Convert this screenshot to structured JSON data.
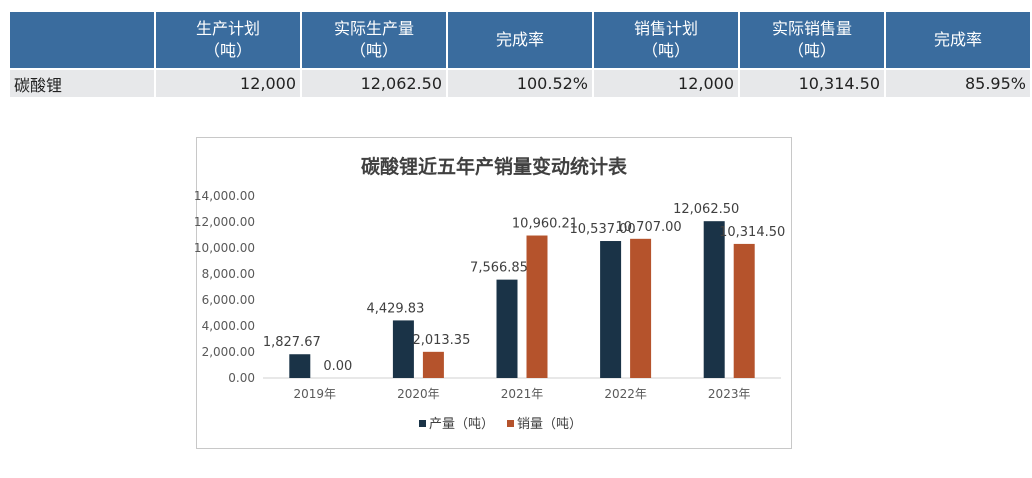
{
  "table": {
    "headers": [
      "",
      "生产计划\n（吨）",
      "实际生产量\n（吨）",
      "完成率",
      "销售计划\n（吨）",
      "实际销售量\n（吨）",
      "完成率"
    ],
    "header_lines": [
      [
        ""
      ],
      [
        "生产计划",
        "（吨）"
      ],
      [
        "实际生产量",
        "（吨）"
      ],
      [
        "完成率"
      ],
      [
        "销售计划",
        "（吨）"
      ],
      [
        "实际销售量",
        "（吨）"
      ],
      [
        "完成率"
      ]
    ],
    "rows": [
      [
        "碳酸锂",
        "12,000",
        "12,062.50",
        "100.52%",
        "12,000",
        "10,314.50",
        "85.95%"
      ]
    ]
  },
  "colors": {
    "header_bg": "#3a6c9e",
    "row_bg": "#e7e8ea",
    "production": "#1a3347",
    "sales": "#b5532c"
  },
  "chart_data": {
    "type": "bar",
    "title": "碳酸锂近五年产销量变动统计表",
    "categories": [
      "2019年",
      "2020年",
      "2021年",
      "2022年",
      "2023年"
    ],
    "series": [
      {
        "name": "产量（吨）",
        "values": [
          1827.67,
          4429.83,
          7566.85,
          10537.0,
          12062.5
        ],
        "labels": [
          "1,827.67",
          "4,429.83",
          "7,566.85",
          "10,537.00",
          "12,062.50"
        ],
        "color": "#1a3347"
      },
      {
        "name": "销量（吨）",
        "values": [
          0.0,
          2013.35,
          10960.21,
          10707.0,
          10314.5
        ],
        "labels": [
          "0.00",
          "2,013.35",
          "10,960.21",
          "10,707.00",
          "10,314.50"
        ],
        "color": "#b5532c"
      }
    ],
    "yticks": [
      "0.00",
      "2,000.00",
      "4,000.00",
      "6,000.00",
      "8,000.00",
      "10,000.00",
      "12,000.00",
      "14,000.00"
    ],
    "ylim": [
      0,
      14000
    ],
    "xlabel": "",
    "ylabel": "",
    "grid": false,
    "legend_position": "bottom"
  }
}
